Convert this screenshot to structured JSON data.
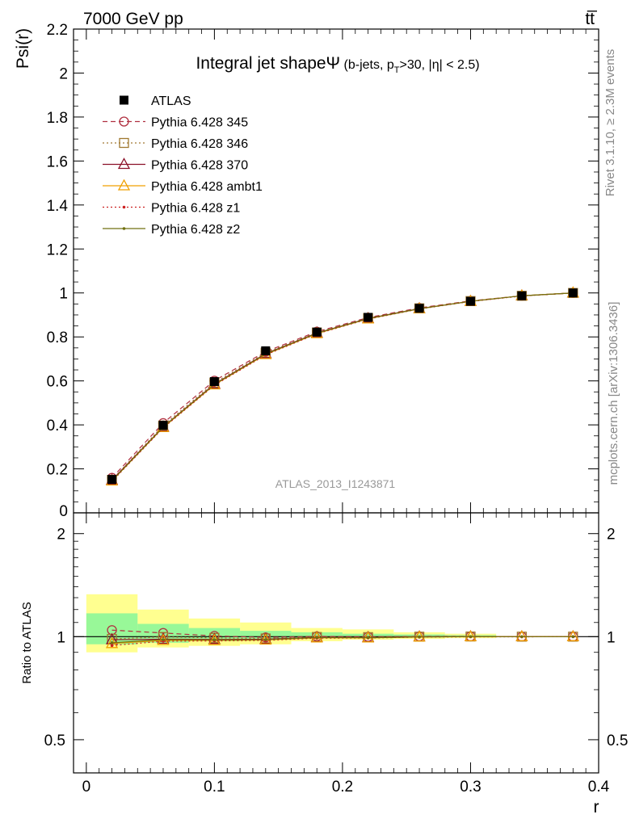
{
  "header": {
    "left": "7000 GeV pp",
    "right": "tt̅"
  },
  "side_labels": {
    "rivet": "Rivet 3.1.10, ≥ 2.3M events",
    "mcplots": "mcplots.cern.ch [arXiv:1306.3436]"
  },
  "chart_data": [
    {
      "type": "line",
      "panel": "main",
      "title": "Integral jet shapeΨ",
      "subtitle": {
        "prefix": " (b-jets, p",
        "subscript": "T",
        "suffix": ">30, |η| < 2.5)"
      },
      "ylabel": "Psi(r)",
      "xlabel": "r",
      "watermark": "ATLAS_2013_I1243871",
      "xlim": [
        -0.01,
        0.4
      ],
      "ylim": [
        0,
        2.2
      ],
      "x_ticks": [
        0,
        0.1,
        0.2,
        0.3,
        0.4
      ],
      "x_tick_labels": [
        "0",
        "0.1",
        "0.2",
        "0.3",
        "0.4"
      ],
      "y_ticks": [
        0.2,
        0.4,
        0.6,
        0.8,
        1.0,
        1.2,
        1.4,
        1.6,
        1.8,
        2.0,
        2.2
      ],
      "y_tick_labels": [
        "0.2",
        "0.4",
        "0.6",
        "0.8",
        "1",
        "1.2",
        "1.4",
        "1.6",
        "1.8",
        "2",
        "2.2"
      ],
      "y_zero_label": "0",
      "legend_position": "top-left",
      "x": [
        0.02,
        0.06,
        0.1,
        0.14,
        0.18,
        0.22,
        0.26,
        0.3,
        0.34,
        0.38
      ],
      "series": [
        {
          "name": "ATLAS",
          "color": "#000000",
          "marker": "filled-square",
          "line": "none",
          "values": [
            0.152,
            0.398,
            0.597,
            0.737,
            0.822,
            0.889,
            0.93,
            0.962,
            0.987,
            1.0
          ]
        },
        {
          "name": "Pythia 6.428 345",
          "color": "#b03040",
          "marker": "open-circle",
          "line": "dashed",
          "values": [
            0.159,
            0.408,
            0.601,
            0.733,
            0.824,
            0.888,
            0.932,
            0.964,
            0.987,
            1.0
          ]
        },
        {
          "name": "Pythia 6.428 346",
          "color": "#a07830",
          "marker": "open-square",
          "line": "dotted",
          "values": [
            0.15,
            0.397,
            0.592,
            0.728,
            0.82,
            0.886,
            0.93,
            0.963,
            0.987,
            1.0
          ]
        },
        {
          "name": "Pythia 6.428 370",
          "color": "#8b1028",
          "marker": "open-triangle",
          "line": "solid",
          "values": [
            0.149,
            0.391,
            0.586,
            0.724,
            0.818,
            0.884,
            0.929,
            0.962,
            0.987,
            1.0
          ]
        },
        {
          "name": "Pythia 6.428 ambt1",
          "color": "#f0a000",
          "marker": "open-triangle",
          "line": "solid",
          "values": [
            0.145,
            0.388,
            0.582,
            0.72,
            0.815,
            0.882,
            0.928,
            0.962,
            0.987,
            1.0
          ]
        },
        {
          "name": "Pythia 6.428 z1",
          "color": "#cc2020",
          "marker": "dot",
          "line": "dotted",
          "values": [
            0.143,
            0.386,
            0.58,
            0.718,
            0.814,
            0.881,
            0.927,
            0.961,
            0.986,
            1.0
          ]
        },
        {
          "name": "Pythia 6.428 z2",
          "color": "#707010",
          "marker": "dot",
          "line": "solid",
          "values": [
            0.146,
            0.39,
            0.584,
            0.722,
            0.817,
            0.883,
            0.928,
            0.962,
            0.987,
            1.0
          ]
        }
      ]
    },
    {
      "type": "line",
      "panel": "ratio",
      "ylabel": "Ratio to ATLAS",
      "xlabel": "r",
      "xlim": [
        -0.01,
        0.4
      ],
      "ylim": [
        0.4,
        2.3
      ],
      "y_ticks": [
        0.5,
        1,
        2
      ],
      "y_tick_labels": [
        "0.5",
        "1",
        "2"
      ],
      "x_ticks": [
        0,
        0.1,
        0.2,
        0.3,
        0.4
      ],
      "x_tick_labels": [
        "0",
        "0.1",
        "0.2",
        "0.3",
        "0.4"
      ],
      "band_colors": {
        "inner": "#98f898",
        "outer": "#ffff90"
      },
      "bands": [
        {
          "x0": 0.0,
          "x1": 0.04,
          "inner": [
            0.95,
            1.17
          ],
          "outer": [
            0.9,
            1.33
          ]
        },
        {
          "x0": 0.04,
          "x1": 0.08,
          "inner": [
            0.96,
            1.09
          ],
          "outer": [
            0.93,
            1.2
          ]
        },
        {
          "x0": 0.08,
          "x1": 0.12,
          "inner": [
            0.97,
            1.06
          ],
          "outer": [
            0.94,
            1.13
          ]
        },
        {
          "x0": 0.12,
          "x1": 0.16,
          "inner": [
            0.98,
            1.04
          ],
          "outer": [
            0.95,
            1.1
          ]
        },
        {
          "x0": 0.16,
          "x1": 0.2,
          "inner": [
            0.99,
            1.03
          ],
          "outer": [
            0.97,
            1.06
          ]
        },
        {
          "x0": 0.2,
          "x1": 0.24,
          "inner": [
            0.99,
            1.02
          ],
          "outer": [
            0.98,
            1.05
          ]
        },
        {
          "x0": 0.24,
          "x1": 0.28,
          "inner": [
            0.995,
            1.015
          ],
          "outer": [
            0.985,
            1.03
          ]
        },
        {
          "x0": 0.28,
          "x1": 0.32,
          "inner": [
            0.997,
            1.01
          ],
          "outer": [
            0.99,
            1.02
          ]
        }
      ],
      "x": [
        0.02,
        0.06,
        0.1,
        0.14,
        0.18,
        0.22,
        0.26,
        0.3,
        0.34,
        0.38
      ],
      "series": [
        {
          "name": "Pythia 6.428 345",
          "color": "#b03040",
          "marker": "open-circle",
          "line": "dashed",
          "values": [
            1.045,
            1.025,
            1.005,
            0.995,
            1.002,
            0.999,
            1.002,
            1.002,
            1.0,
            1.0
          ]
        },
        {
          "name": "Pythia 6.428 346",
          "color": "#a07830",
          "marker": "open-square",
          "line": "dotted",
          "values": [
            0.985,
            0.998,
            0.992,
            0.988,
            0.998,
            0.997,
            1.0,
            1.001,
            1.0,
            1.0
          ]
        },
        {
          "name": "Pythia 6.428 370",
          "color": "#8b1028",
          "marker": "open-triangle",
          "line": "solid",
          "values": [
            0.98,
            0.983,
            0.982,
            0.983,
            0.995,
            0.995,
            0.999,
            1.0,
            1.0,
            1.0
          ]
        },
        {
          "name": "Pythia 6.428 ambt1",
          "color": "#f0a000",
          "marker": "open-triangle",
          "line": "solid",
          "values": [
            0.955,
            0.975,
            0.975,
            0.978,
            0.992,
            0.992,
            0.998,
            1.0,
            1.0,
            1.0
          ]
        },
        {
          "name": "Pythia 6.428 z1",
          "color": "#cc2020",
          "marker": "dot",
          "line": "dotted",
          "values": [
            0.942,
            0.97,
            0.972,
            0.975,
            0.99,
            0.991,
            0.997,
            0.999,
            0.999,
            1.0
          ]
        },
        {
          "name": "Pythia 6.428 z2",
          "color": "#707010",
          "marker": "dot",
          "line": "solid",
          "values": [
            0.96,
            0.98,
            0.979,
            0.98,
            0.994,
            0.993,
            0.998,
            1.0,
            1.0,
            1.0
          ]
        }
      ]
    }
  ]
}
